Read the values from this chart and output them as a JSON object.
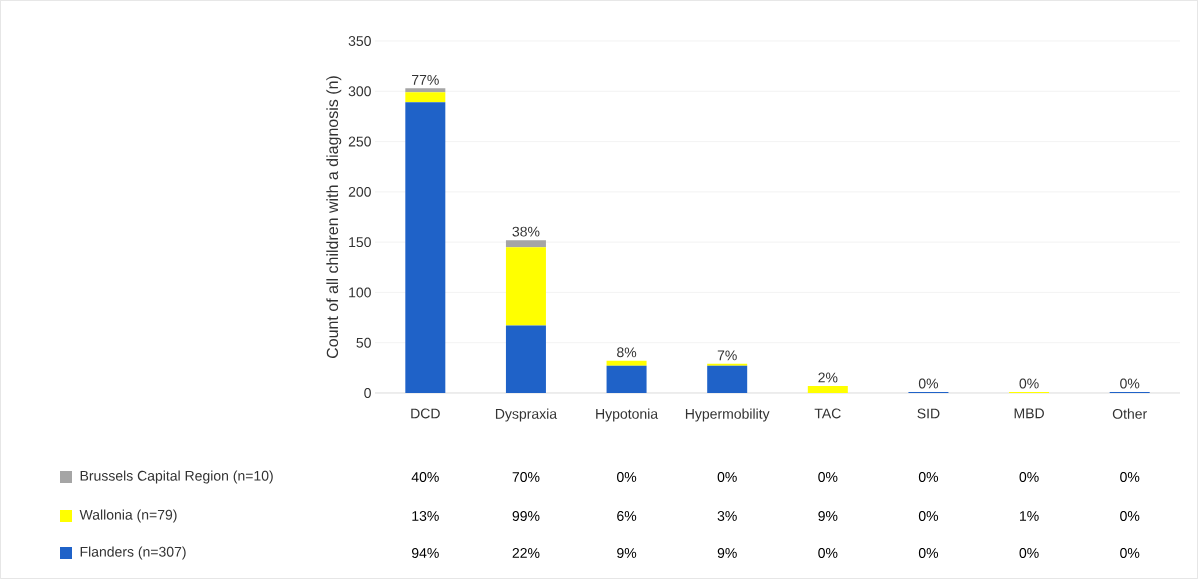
{
  "chart_data": {
    "type": "bar",
    "stacked": true,
    "ylabel": "Count of all children with a diagnosis (n)",
    "categories": [
      "DCD",
      "Dyspraxia",
      "Hypotonia",
      "Hypermobility",
      "TAC",
      "SID",
      "MBD",
      "Other"
    ],
    "series": [
      {
        "name": "Flanders (n=307)",
        "color": "#1f62c8",
        "values": [
          289,
          67,
          27,
          27,
          0,
          1,
          0,
          1
        ]
      },
      {
        "name": "Wallonia (n=79)",
        "color": "#ffff00",
        "values": [
          10,
          78,
          5,
          2,
          7,
          0,
          1,
          0
        ]
      },
      {
        "name": "Brussels Capital Region (n=10)",
        "color": "#a5a5a5",
        "values": [
          4,
          7,
          0,
          0,
          0,
          0,
          0,
          0
        ]
      }
    ],
    "annotations": [
      {
        "text": "77%",
        "x": "DCD",
        "y": 303
      },
      {
        "text": "38%",
        "x": "Dyspraxia",
        "y": 152
      },
      {
        "text": "8%",
        "x": "Hypotonia",
        "y": 32
      },
      {
        "text": "7%",
        "x": "Hypermobility",
        "y": 29
      },
      {
        "text": "2%",
        "x": "TAC",
        "y": 7
      },
      {
        "text": "0%",
        "x": "SID",
        "y": 1
      },
      {
        "text": "0%",
        "x": "MBD",
        "y": 1
      },
      {
        "text": "0%",
        "x": "Other",
        "y": 1
      },
      "40%",
      "70%",
      "0%",
      "0%",
      "0%",
      "0%",
      "0%",
      "0%",
      "13%",
      "99%",
      "6%",
      "3%",
      "9%",
      "0%",
      "1%",
      "0%",
      "94%",
      "22%",
      "9%",
      "9%",
      "0%",
      "0%",
      "0%",
      "0%"
    ],
    "ylim": [
      0,
      350
    ],
    "yticks": [
      0,
      50,
      100,
      150,
      200,
      250,
      300,
      350
    ],
    "grid": "y",
    "legend": "bottom"
  }
}
